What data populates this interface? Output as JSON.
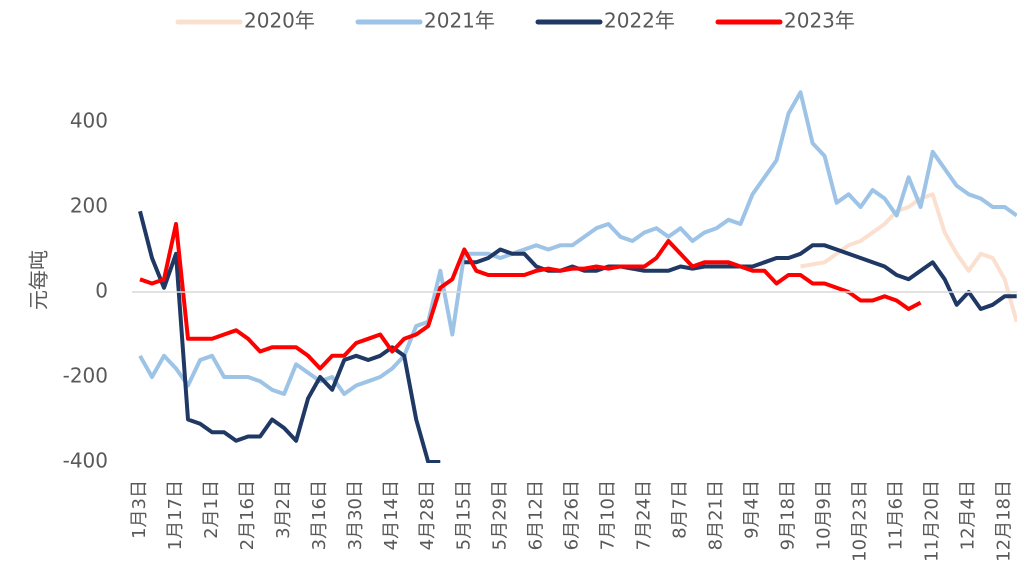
{
  "chart_data": {
    "type": "line",
    "y_label": "元每吨",
    "categories": [
      "1月3日",
      null,
      null,
      "1月17日",
      null,
      null,
      "2月1日",
      null,
      null,
      "2月16日",
      null,
      null,
      "3月2日",
      null,
      null,
      "3月16日",
      null,
      null,
      "3月30日",
      null,
      null,
      "4月14日",
      null,
      null,
      "4月28日",
      null,
      null,
      "5月15日",
      null,
      null,
      "5月29日",
      null,
      null,
      "6月12日",
      null,
      null,
      "6月26日",
      null,
      null,
      "7月10日",
      null,
      null,
      "7月24日",
      null,
      null,
      "8月7日",
      null,
      null,
      "8月21日",
      null,
      null,
      "9月4日",
      null,
      null,
      "9月18日",
      null,
      null,
      "10月9日",
      null,
      null,
      "10月23日",
      null,
      null,
      "11月6日",
      null,
      null,
      "11月20日",
      null,
      null,
      "12月4日",
      null,
      null,
      "12月18日",
      null
    ],
    "series": [
      {
        "name": "2020年",
        "color": "#fbe0cf",
        "values": [
          null,
          null,
          null,
          null,
          null,
          null,
          null,
          null,
          null,
          null,
          null,
          null,
          null,
          null,
          null,
          null,
          null,
          null,
          null,
          null,
          null,
          null,
          null,
          null,
          null,
          null,
          null,
          null,
          null,
          null,
          null,
          null,
          null,
          null,
          null,
          null,
          null,
          null,
          null,
          null,
          null,
          null,
          null,
          null,
          null,
          null,
          null,
          null,
          null,
          null,
          null,
          null,
          null,
          null,
          null,
          60,
          65,
          70,
          90,
          110,
          120,
          140,
          160,
          190,
          200,
          220,
          230,
          140,
          90,
          50,
          90,
          80,
          30,
          -70
        ]
      },
      {
        "name": "2021年",
        "color": "#9dc3e6",
        "values": [
          -150,
          -200,
          -150,
          -180,
          -220,
          -160,
          -150,
          -200,
          -200,
          -200,
          -210,
          -230,
          -240,
          -170,
          -190,
          -210,
          -200,
          -240,
          -220,
          -210,
          -200,
          -180,
          -150,
          -80,
          -70,
          50,
          -100,
          90,
          90,
          90,
          80,
          90,
          100,
          110,
          100,
          110,
          110,
          130,
          150,
          160,
          130,
          120,
          140,
          150,
          130,
          150,
          120,
          140,
          150,
          170,
          160,
          230,
          270,
          310,
          420,
          470,
          350,
          320,
          210,
          230,
          200,
          240,
          220,
          180,
          270,
          200,
          330,
          290,
          250,
          230,
          220,
          200,
          200,
          180
        ]
      },
      {
        "name": "2022年",
        "color": "#1f3864",
        "values": [
          190,
          80,
          10,
          90,
          -300,
          -310,
          -330,
          -330,
          -350,
          -340,
          -340,
          -300,
          -320,
          -350,
          -250,
          -200,
          -230,
          -160,
          -150,
          -160,
          -150,
          -130,
          -150,
          -300,
          -400,
          -400,
          null,
          70,
          70,
          80,
          100,
          90,
          90,
          60,
          50,
          50,
          60,
          50,
          50,
          60,
          60,
          55,
          50,
          50,
          50,
          60,
          55,
          60,
          60,
          60,
          60,
          60,
          70,
          80,
          80,
          90,
          110,
          110,
          100,
          90,
          80,
          70,
          60,
          40,
          30,
          50,
          70,
          30,
          -30,
          0,
          -40,
          -30,
          -10,
          -10
        ]
      },
      {
        "name": "2023年",
        "color": "#ff0000",
        "values": [
          30,
          20,
          30,
          160,
          -110,
          -110,
          -110,
          -100,
          -90,
          -110,
          -140,
          -130,
          -130,
          -130,
          -150,
          -180,
          -150,
          -150,
          -120,
          -110,
          -100,
          -140,
          -110,
          -100,
          -80,
          10,
          30,
          100,
          50,
          40,
          40,
          40,
          40,
          50,
          55,
          50,
          55,
          55,
          60,
          55,
          60,
          60,
          60,
          80,
          120,
          90,
          60,
          70,
          70,
          70,
          60,
          50,
          50,
          20,
          40,
          40,
          20,
          20,
          10,
          0,
          -20,
          -20,
          -10,
          -20,
          -40,
          -25,
          null,
          null,
          null,
          null,
          null,
          null,
          null,
          null
        ]
      }
    ],
    "ylim": [
      -400,
      500
    ],
    "yticks": [
      -400,
      -200,
      0,
      200,
      400
    ]
  }
}
